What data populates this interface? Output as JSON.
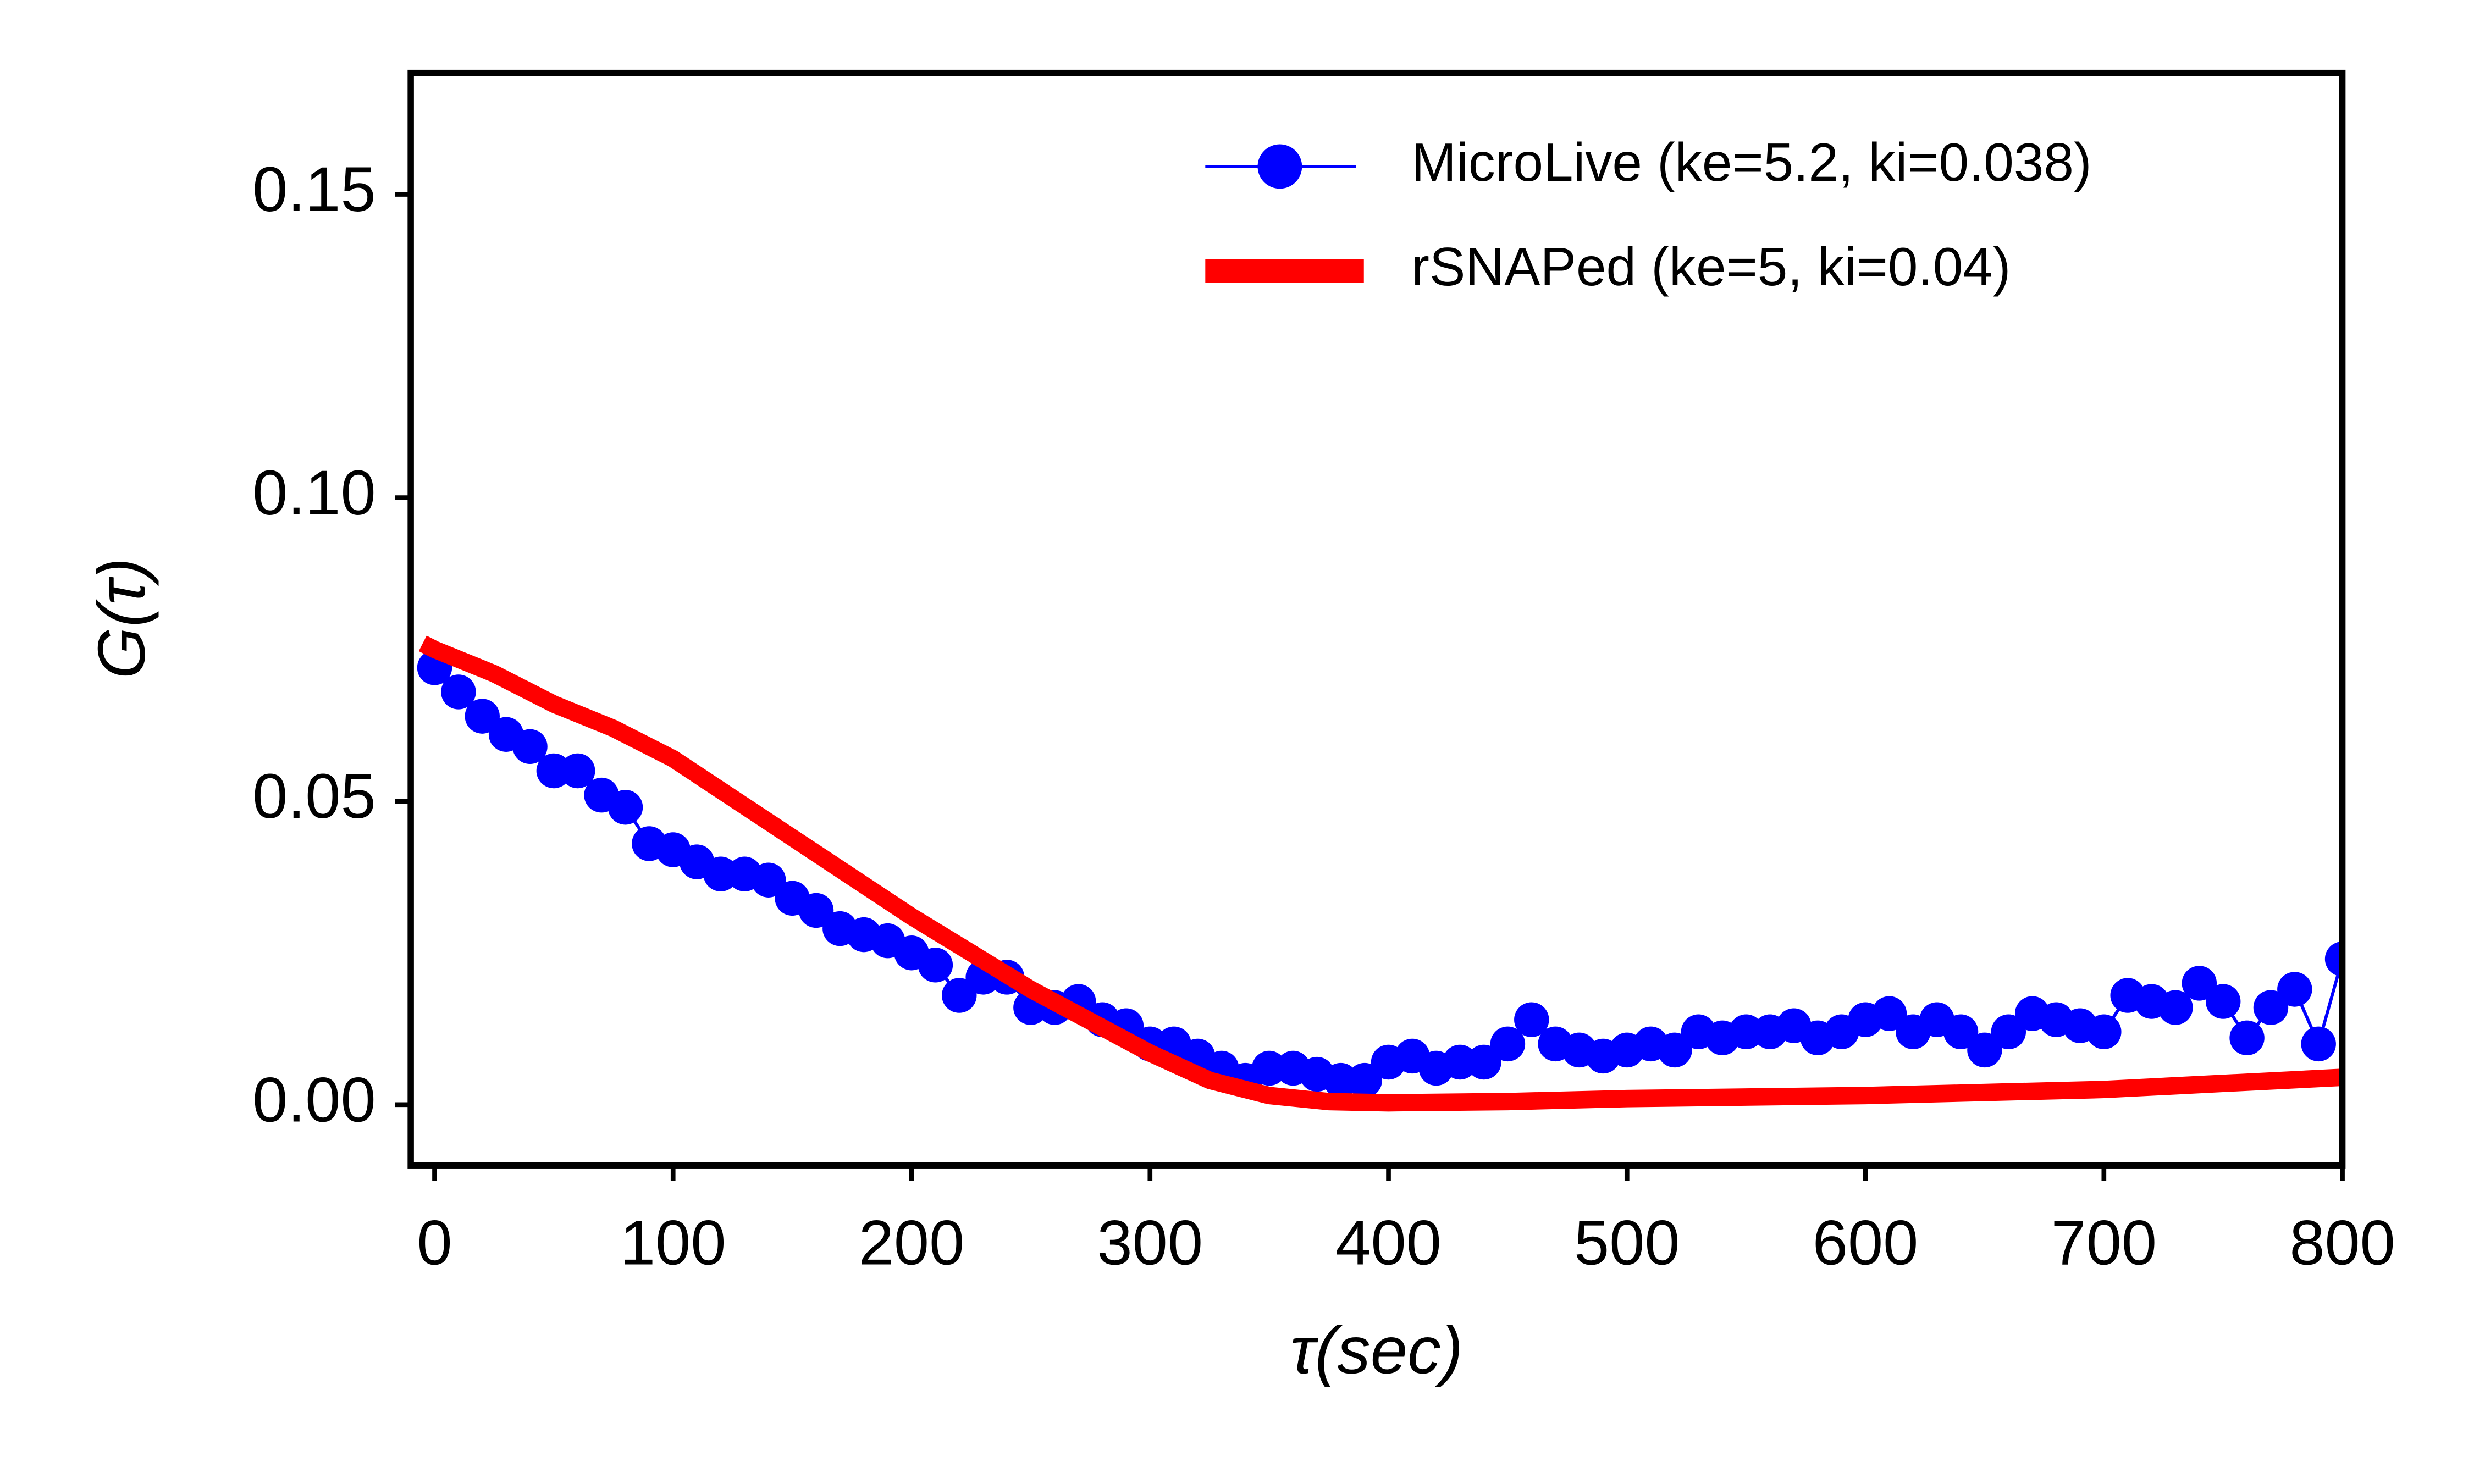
{
  "chart_data": {
    "type": "line",
    "xlabel": "τ(sec)",
    "ylabel": "G(τ)",
    "xlim": [
      -10,
      800
    ],
    "ylim": [
      -0.01,
      0.17
    ],
    "xticks": [
      0,
      100,
      200,
      300,
      400,
      500,
      600,
      700,
      800
    ],
    "yticks": [
      {
        "value": 0,
        "label": "0.00"
      },
      {
        "value": 0.05,
        "label": "0.05"
      },
      {
        "value": 0.1,
        "label": "0.10"
      },
      {
        "value": 0.15,
        "label": "0.15"
      }
    ],
    "legend": "upper right",
    "series": [
      {
        "name": "MicroLive (ke=5.2, ki=0.038)",
        "color": "#0000ff",
        "marker": "circle",
        "x": [
          0,
          10,
          20,
          30,
          40,
          50,
          60,
          70,
          80,
          90,
          100,
          110,
          120,
          130,
          140,
          150,
          160,
          170,
          180,
          190,
          200,
          210,
          220,
          230,
          240,
          250,
          260,
          270,
          280,
          290,
          300,
          310,
          320,
          330,
          340,
          350,
          360,
          370,
          380,
          390,
          400,
          410,
          420,
          430,
          440,
          450,
          460,
          470,
          480,
          490,
          500,
          510,
          520,
          530,
          540,
          550,
          560,
          570,
          580,
          590,
          600,
          610,
          620,
          630,
          640,
          650,
          660,
          670,
          680,
          690,
          700,
          710,
          720,
          730,
          740,
          750,
          760,
          770,
          780,
          790,
          800
        ],
        "values": [
          0.072,
          0.068,
          0.064,
          0.061,
          0.059,
          0.055,
          0.055,
          0.051,
          0.049,
          0.043,
          0.042,
          0.04,
          0.038,
          0.038,
          0.037,
          0.034,
          0.032,
          0.029,
          0.028,
          0.027,
          0.025,
          0.023,
          0.018,
          0.021,
          0.021,
          0.016,
          0.016,
          0.017,
          0.014,
          0.013,
          0.01,
          0.01,
          0.008,
          0.006,
          0.004,
          0.006,
          0.006,
          0.005,
          0.004,
          0.004,
          0.007,
          0.008,
          0.006,
          0.007,
          0.007,
          0.01,
          0.014,
          0.01,
          0.009,
          0.008,
          0.009,
          0.01,
          0.009,
          0.012,
          0.011,
          0.012,
          0.012,
          0.013,
          0.011,
          0.012,
          0.014,
          0.015,
          0.012,
          0.014,
          0.012,
          0.009,
          0.012,
          0.015,
          0.014,
          0.013,
          0.012,
          0.018,
          0.017,
          0.016,
          0.02,
          0.017,
          0.011,
          0.016,
          0.019,
          0.01,
          0.024
        ]
      },
      {
        "name": "rSNAPed (ke=5, ki=0.04)",
        "color": "#ff0000",
        "marker": "none",
        "x": [
          -5,
          0,
          25,
          50,
          75,
          100,
          150,
          200,
          250,
          300,
          325,
          350,
          375,
          400,
          450,
          500,
          600,
          700,
          800
        ],
        "values": [
          0.076,
          0.075,
          0.071,
          0.066,
          0.062,
          0.057,
          0.044,
          0.031,
          0.019,
          0.0085,
          0.004,
          0.0015,
          0.0005,
          0.0003,
          0.0005,
          0.001,
          0.0015,
          0.0025,
          0.0045
        ]
      }
    ]
  }
}
